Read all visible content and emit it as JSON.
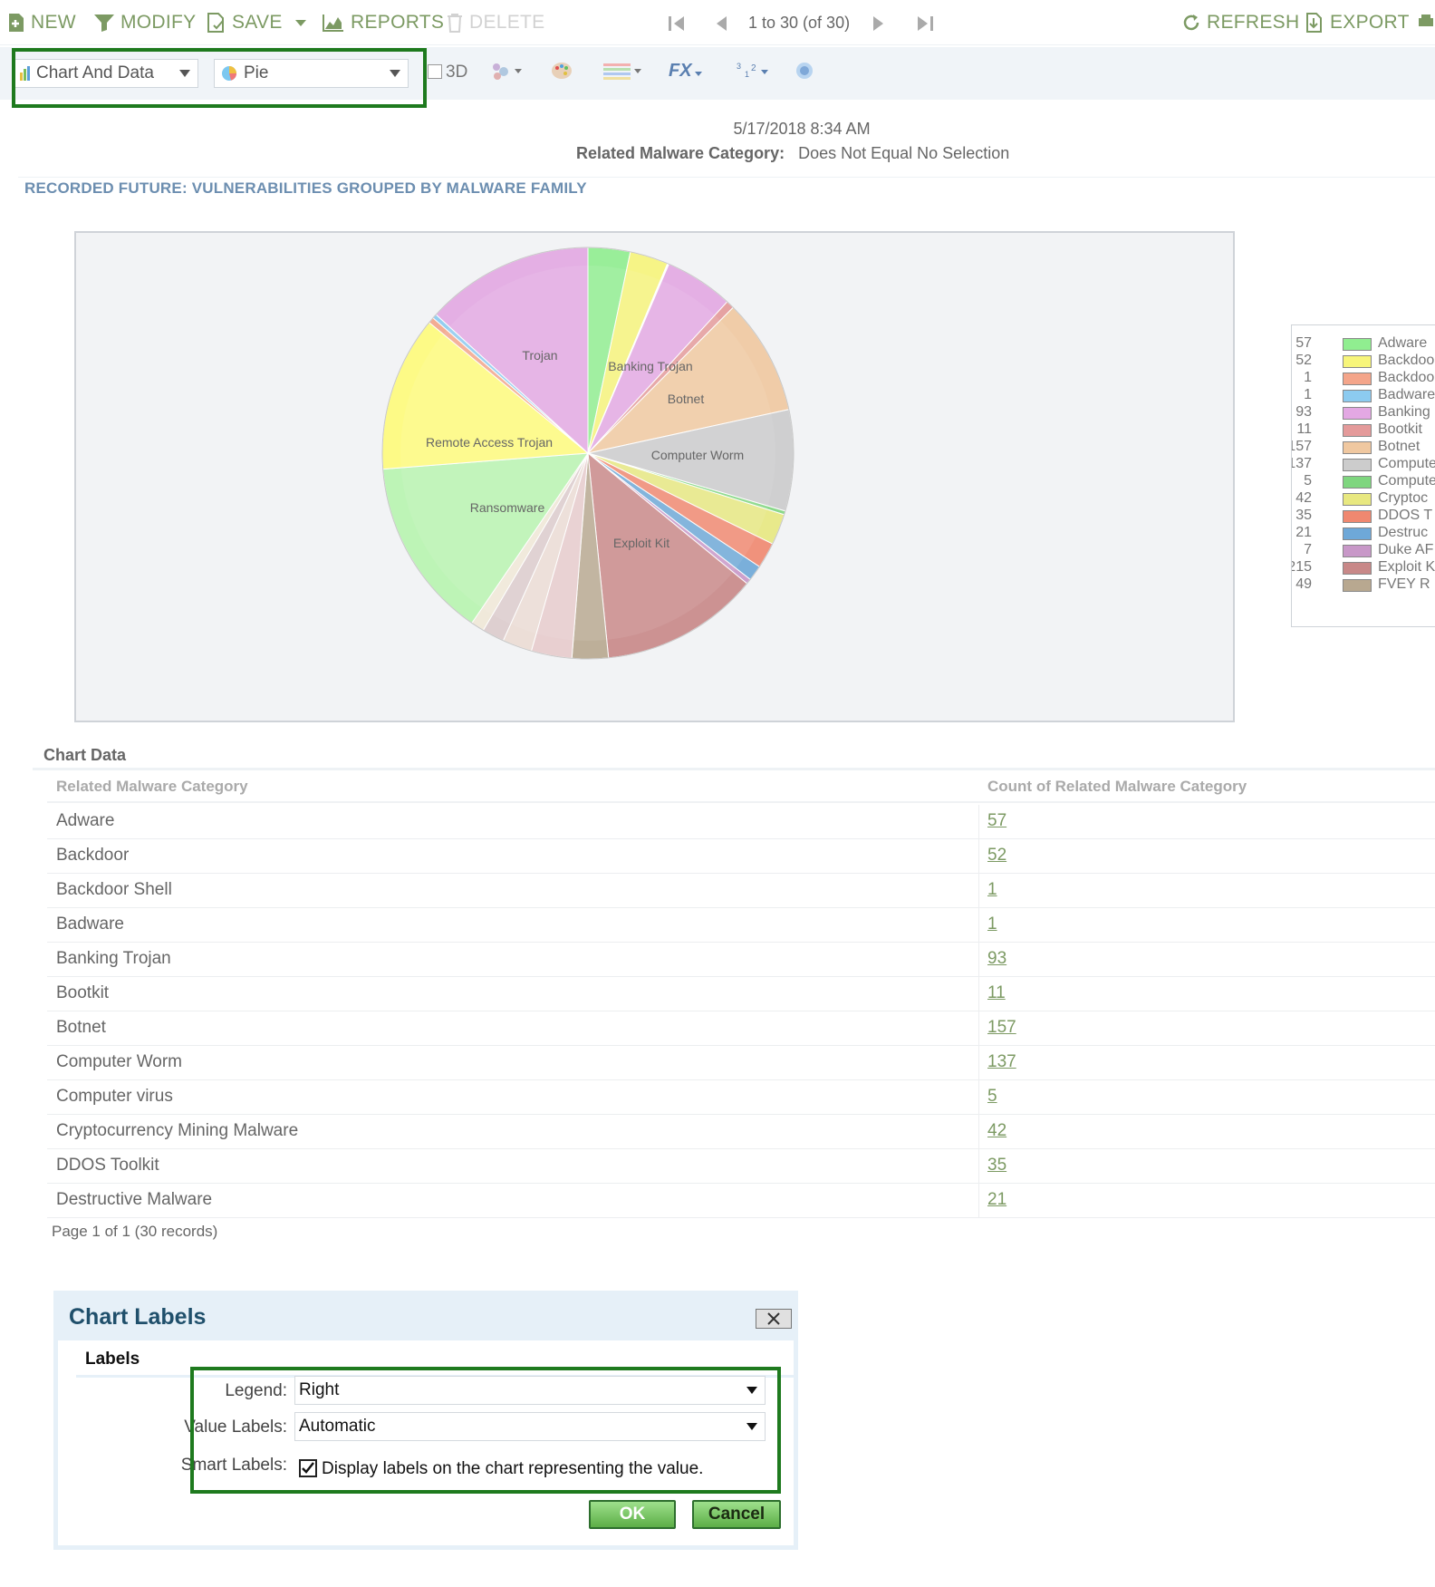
{
  "toolbar": {
    "new_label": "NEW",
    "modify_label": "MODIFY",
    "save_label": "SAVE",
    "reports_label": "REPORTS",
    "delete_label": "DELETE",
    "pager_text": "1 to 30 (of 30)",
    "refresh_label": "REFRESH",
    "export_label": "EXPORT"
  },
  "options": {
    "view_select": "Chart And Data",
    "chart_type_select": "Pie",
    "three_d_label": "3D",
    "fx_label": "FX",
    "three_d_checked": false
  },
  "report": {
    "date": "5/17/2018 8:34 AM",
    "filter_field": "Related Malware Category:",
    "filter_value": "Does Not Equal No Selection",
    "title": "RECORDED FUTURE: VULNERABILITIES GROUPED BY MALWARE FAMILY"
  },
  "chart_data": {
    "type": "pie",
    "slice_labels": [
      "Trojan",
      "Banking Trojan",
      "Botnet",
      "Computer Worm",
      "Exploit Kit",
      "Ransomware",
      "Remote Access Trojan"
    ],
    "legend_position": "right",
    "legend_entries": [
      {
        "value": 57,
        "label": "Adware",
        "color": "#90ee90"
      },
      {
        "value": 52,
        "label": "Backdoo",
        "color": "#f7f57a"
      },
      {
        "value": 1,
        "label": "Backdoo",
        "color": "#f4a58a"
      },
      {
        "value": 1,
        "label": "Badware",
        "color": "#8ccbf0"
      },
      {
        "value": 93,
        "label": "Banking",
        "color": "#e3a8e3"
      },
      {
        "value": 11,
        "label": "Bootkit",
        "color": "#e49a9a"
      },
      {
        "value": 157,
        "label": "Botnet",
        "color": "#f0c8a0"
      },
      {
        "value": 137,
        "label": "Compute",
        "color": "#cccccc"
      },
      {
        "value": 5,
        "label": "Compute",
        "color": "#7fd67f"
      },
      {
        "value": 42,
        "label": "Cryptoc",
        "color": "#e8e880"
      },
      {
        "value": 35,
        "label": "DDOS T",
        "color": "#f08870"
      },
      {
        "value": 21,
        "label": "Destruc",
        "color": "#6ea8d8"
      },
      {
        "value": 7,
        "label": "Duke AF",
        "color": "#c898c8"
      },
      {
        "value": 215,
        "label": "Exploit K",
        "color": "#c88888"
      },
      {
        "value": 49,
        "label": "FVEY R",
        "color": "#b8a890"
      }
    ]
  },
  "table": {
    "title": "Chart Data",
    "col_category": "Related Malware Category",
    "col_count": "Count of Related Malware Category",
    "rows": [
      {
        "category": "Adware",
        "count": "57"
      },
      {
        "category": "Backdoor",
        "count": "52"
      },
      {
        "category": "Backdoor Shell",
        "count": "1"
      },
      {
        "category": "Badware",
        "count": "1"
      },
      {
        "category": "Banking Trojan",
        "count": "93"
      },
      {
        "category": "Bootkit",
        "count": "11"
      },
      {
        "category": "Botnet",
        "count": "157"
      },
      {
        "category": "Computer Worm",
        "count": "137"
      },
      {
        "category": "Computer virus",
        "count": "5"
      },
      {
        "category": "Cryptocurrency Mining Malware",
        "count": "42"
      },
      {
        "category": "DDOS Toolkit",
        "count": "35"
      },
      {
        "category": "Destructive Malware",
        "count": "21"
      }
    ],
    "page_info": "Page 1 of 1 (30 records)"
  },
  "dialog": {
    "title": "Chart Labels",
    "tab_label": "Labels",
    "legend_label": "Legend:",
    "legend_value": "Right",
    "value_labels_label": "Value Labels:",
    "value_labels_value": "Automatic",
    "smart_labels_label": "Smart Labels:",
    "smart_labels_text": "Display labels on the chart representing the value.",
    "smart_labels_checked": true,
    "ok_label": "OK",
    "cancel_label": "Cancel"
  },
  "colors": {
    "toolbar_accent": "#7c9a63",
    "title_blue": "#6c8eb0",
    "highlight_green": "#1e7a1e",
    "dialog_title": "#1f4f6b"
  }
}
